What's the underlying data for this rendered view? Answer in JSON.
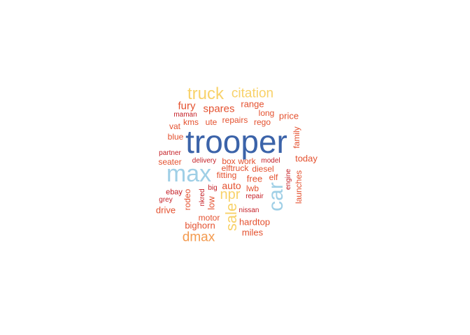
{
  "palette": {
    "dark_red": "#c41f26",
    "red": "#e4512f",
    "orange": "#f39a4f",
    "yellow": "#f8d26a",
    "light_blue": "#9fcfe6",
    "blue": "#3b63a9"
  },
  "words": [
    {
      "text": "trooper",
      "color": "blue",
      "vertical": false
    },
    {
      "text": "max",
      "color": "light_blue",
      "vertical": false
    },
    {
      "text": "car",
      "color": "light_blue",
      "vertical": true
    },
    {
      "text": "truck",
      "color": "yellow",
      "vertical": false
    },
    {
      "text": "citation",
      "color": "yellow",
      "vertical": false
    },
    {
      "text": "sale",
      "color": "yellow",
      "vertical": true
    },
    {
      "text": "npr",
      "color": "yellow",
      "vertical": false
    },
    {
      "text": "dmax",
      "color": "orange",
      "vertical": false
    },
    {
      "text": "spares",
      "color": "red",
      "vertical": false
    },
    {
      "text": "fury",
      "color": "red",
      "vertical": false
    },
    {
      "text": "auto",
      "color": "red",
      "vertical": false
    },
    {
      "text": "range",
      "color": "red",
      "vertical": false
    },
    {
      "text": "price",
      "color": "red",
      "vertical": false
    },
    {
      "text": "long",
      "color": "red",
      "vertical": false
    },
    {
      "text": "today",
      "color": "red",
      "vertical": false
    },
    {
      "text": "seater",
      "color": "red",
      "vertical": false
    },
    {
      "text": "hardtop",
      "color": "red",
      "vertical": false
    },
    {
      "text": "free",
      "color": "red",
      "vertical": false
    },
    {
      "text": "miles",
      "color": "red",
      "vertical": false
    },
    {
      "text": "bighorn",
      "color": "red",
      "vertical": false
    },
    {
      "text": "drive",
      "color": "red",
      "vertical": false
    },
    {
      "text": "low",
      "color": "red",
      "vertical": true
    },
    {
      "text": "motor",
      "color": "red",
      "vertical": false
    },
    {
      "text": "rego",
      "color": "red",
      "vertical": false
    },
    {
      "text": "repairs",
      "color": "red",
      "vertical": false
    },
    {
      "text": "ute",
      "color": "red",
      "vertical": false
    },
    {
      "text": "kms",
      "color": "red",
      "vertical": false
    },
    {
      "text": "vat",
      "color": "red",
      "vertical": false
    },
    {
      "text": "blue",
      "color": "red",
      "vertical": false
    },
    {
      "text": "family",
      "color": "red",
      "vertical": true
    },
    {
      "text": "launches",
      "color": "red",
      "vertical": true
    },
    {
      "text": "rodeo",
      "color": "red",
      "vertical": true
    },
    {
      "text": "elf",
      "color": "red",
      "vertical": false
    },
    {
      "text": "lwb",
      "color": "red",
      "vertical": false
    },
    {
      "text": "fitting",
      "color": "red",
      "vertical": false
    },
    {
      "text": "diesel",
      "color": "red",
      "vertical": false
    },
    {
      "text": "box",
      "color": "red",
      "vertical": false
    },
    {
      "text": "work",
      "color": "red",
      "vertical": false
    },
    {
      "text": "elftruck",
      "color": "red",
      "vertical": false
    },
    {
      "text": "maman",
      "color": "dark_red",
      "vertical": false
    },
    {
      "text": "partner",
      "color": "dark_red",
      "vertical": false
    },
    {
      "text": "delivery",
      "color": "dark_red",
      "vertical": false
    },
    {
      "text": "model",
      "color": "dark_red",
      "vertical": false
    },
    {
      "text": "engine",
      "color": "dark_red",
      "vertical": true
    },
    {
      "text": "ebay",
      "color": "dark_red",
      "vertical": false
    },
    {
      "text": "grey",
      "color": "dark_red",
      "vertical": false
    },
    {
      "text": "big",
      "color": "dark_red",
      "vertical": false
    },
    {
      "text": "nkred",
      "color": "dark_red",
      "vertical": true
    },
    {
      "text": "repair",
      "color": "dark_red",
      "vertical": false
    },
    {
      "text": "nissan",
      "color": "dark_red",
      "vertical": false
    }
  ]
}
